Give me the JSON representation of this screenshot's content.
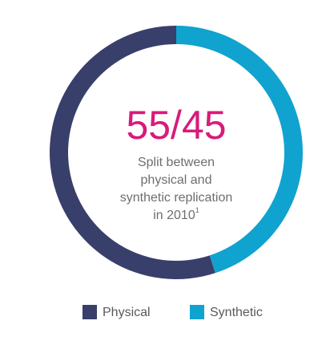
{
  "chart_data": {
    "type": "donut",
    "categories": [
      "Physical",
      "Synthetic"
    ],
    "values": [
      55,
      45
    ],
    "colors": [
      "#383f6b",
      "#10a3cf"
    ],
    "center_label": "55/45",
    "center_label_color": "#d81b7a",
    "subtitle_lines": [
      "Split between",
      "physical and",
      "synthetic replication",
      "in 2010"
    ],
    "footnote_marker": "1"
  }
}
